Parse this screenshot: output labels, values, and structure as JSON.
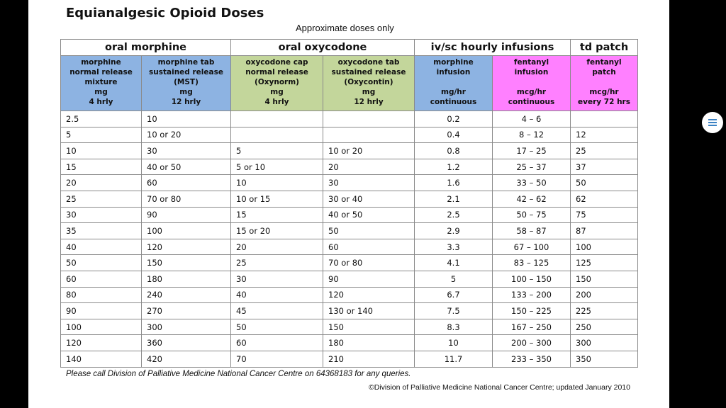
{
  "document": {
    "title": "Equianalgesic Opioid Doses",
    "subtitle": "Approximate doses only",
    "footnote": "Please call Division of Palliative Medicine National Cancer Centre on 64368183 for any queries.",
    "copyright": "©Division of Palliative Medicine National Cancer Centre; updated January 2010"
  },
  "table": {
    "groups": [
      {
        "label": "oral morphine",
        "span": 2
      },
      {
        "label": "oral oxycodone",
        "span": 2
      },
      {
        "label": "iv/sc hourly infusions",
        "span": 2
      },
      {
        "label": "td patch",
        "span": 1
      }
    ],
    "columns": [
      {
        "name": "morphine\nnormal release\nmixture\nmg\n4 hrly",
        "color": "#8db3e2"
      },
      {
        "name": "morphine tab\nsustained release\n(MST)\nmg\n12 hrly",
        "color": "#8db3e2"
      },
      {
        "name": "oxycodone cap\nnormal release\n(Oxynorm)\nmg\n4 hrly",
        "color": "#c3d69b"
      },
      {
        "name": "oxycodone tab\nsustained release\n(Oxycontin)\nmg\n12 hrly",
        "color": "#c3d69b"
      },
      {
        "name": "morphine\ninfusion\n\nmg/hr\ncontinuous",
        "color": "#8db3e2"
      },
      {
        "name": "fentanyl\ninfusion\n\nmcg/hr\ncontinuous",
        "color": "#ff80ff"
      },
      {
        "name": "fentanyl\npatch\n\nmcg/hr\nevery 72 hrs",
        "color": "#ff80ff"
      }
    ],
    "rows": [
      [
        "2.5",
        "10",
        "",
        "",
        "0.2",
        "4 – 6",
        ""
      ],
      [
        "5",
        "10 or 20",
        "",
        "",
        "0.4",
        "8 – 12",
        "12"
      ],
      [
        "10",
        "30",
        "5",
        "10 or 20",
        "0.8",
        "17 – 25",
        "25"
      ],
      [
        "15",
        "40 or 50",
        "5 or 10",
        "20",
        "1.2",
        "25 – 37",
        "37"
      ],
      [
        "20",
        "60",
        "10",
        "30",
        "1.6",
        "33 – 50",
        "50"
      ],
      [
        "25",
        "70 or 80",
        "10 or 15",
        "30 or 40",
        "2.1",
        "42 – 62",
        "62"
      ],
      [
        "30",
        "90",
        "15",
        "40 or 50",
        "2.5",
        "50 – 75",
        "75"
      ],
      [
        "35",
        "100",
        "15 or 20",
        "50",
        "2.9",
        "58 – 87",
        "87"
      ],
      [
        "40",
        "120",
        "20",
        "60",
        "3.3",
        "67 – 100",
        "100"
      ],
      [
        "50",
        "150",
        "25",
        "70 or 80",
        "4.1",
        "83 – 125",
        "125"
      ],
      [
        "60",
        "180",
        "30",
        "90",
        "5",
        "100 – 150",
        "150"
      ],
      [
        "80",
        "240",
        "40",
        "120",
        "6.7",
        "133 – 200",
        "200"
      ],
      [
        "90",
        "270",
        "45",
        "130 or 140",
        "7.5",
        "150 – 225",
        "225"
      ],
      [
        "100",
        "300",
        "50",
        "150",
        "8.3",
        "167 – 250",
        "250"
      ],
      [
        "120",
        "360",
        "60",
        "180",
        "10",
        "200 – 300",
        "300"
      ],
      [
        "140",
        "420",
        "70",
        "210",
        "11.7",
        "233 – 350",
        "350"
      ]
    ]
  },
  "toolbar": {
    "menu_icon": "menu-icon",
    "accent": "#3b82c4"
  }
}
